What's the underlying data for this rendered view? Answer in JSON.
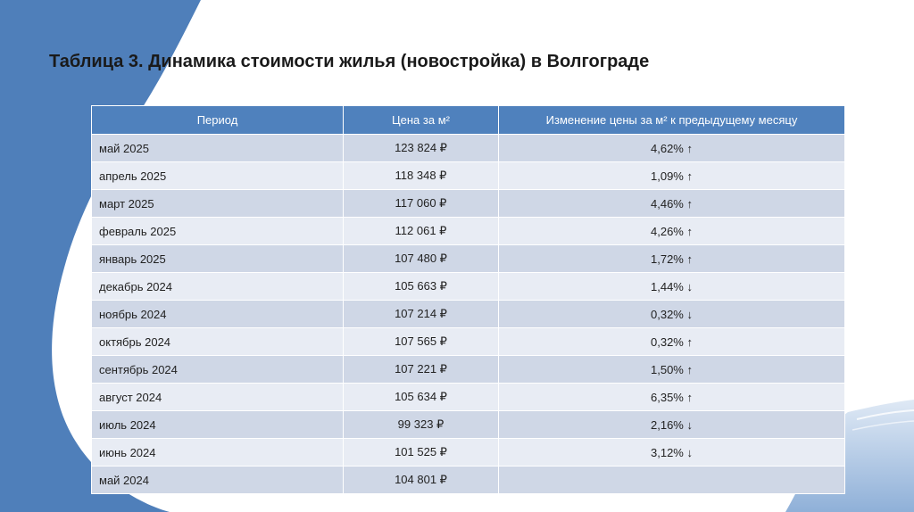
{
  "title": "Таблица 3. Динамика стоимости жилья (новостройка) в Волгограде",
  "table": {
    "headers": [
      "Период",
      "Цена за м²",
      "Изменение цены за м² к предыдущему месяцу"
    ],
    "rows": [
      [
        "май 2025",
        "123 824 ₽",
        "4,62% ↑"
      ],
      [
        "апрель 2025",
        "118 348 ₽",
        "1,09% ↑"
      ],
      [
        "март 2025",
        "117 060 ₽",
        "4,46% ↑"
      ],
      [
        "февраль 2025",
        "112 061 ₽",
        "4,26% ↑"
      ],
      [
        "январь 2025",
        "107 480 ₽",
        "1,72% ↑"
      ],
      [
        "декабрь 2024",
        "105 663 ₽",
        "1,44% ↓"
      ],
      [
        "ноябрь 2024",
        "107 214 ₽",
        "0,32% ↓"
      ],
      [
        "октябрь 2024",
        "107 565 ₽",
        "0,32% ↑"
      ],
      [
        "сентябрь 2024",
        "107 221 ₽",
        "1,50% ↑"
      ],
      [
        "август 2024",
        "105 634 ₽",
        "6,35% ↑"
      ],
      [
        "июль 2024",
        "99 323 ₽",
        "2,16% ↓"
      ],
      [
        "июнь 2024",
        "101 525 ₽",
        "3,12% ↓"
      ],
      [
        "май 2024",
        "104 801 ₽",
        ""
      ]
    ]
  },
  "colors": {
    "background": "#4f7fba",
    "header": "#4f81bd",
    "row_odd": "#cfd7e6",
    "row_even": "#e8ecf4"
  }
}
